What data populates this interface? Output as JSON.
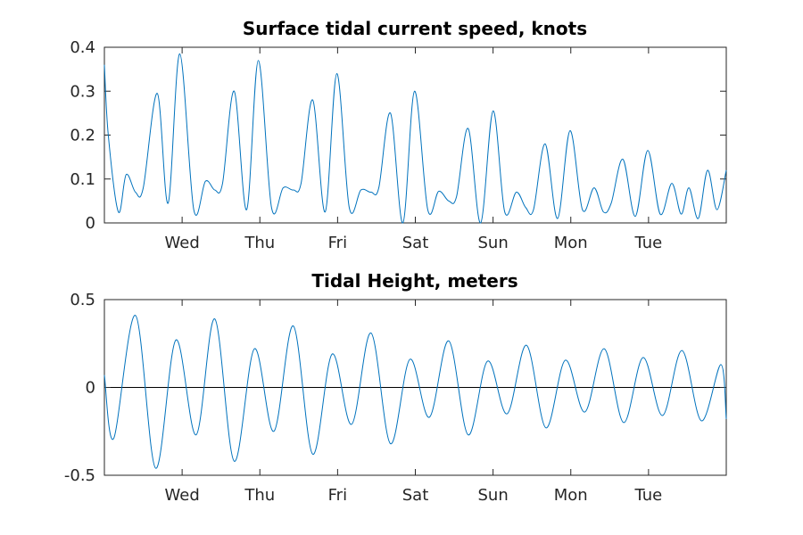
{
  "chart_data": [
    {
      "type": "line",
      "title": "Surface tidal current speed, knots",
      "xlabel": "",
      "ylabel": "",
      "x_ticks": [
        "Wed",
        "Thu",
        "Fri",
        "Sat",
        "Sun",
        "Mon",
        "Tue"
      ],
      "y_ticks": [
        "0",
        "0.1",
        "0.2",
        "0.3",
        "0.4"
      ],
      "xlim": [
        0,
        8
      ],
      "ylim": [
        0,
        0.4
      ],
      "series": [
        {
          "color": "#0072BD",
          "x": [
            0,
            0.05,
            0.18,
            0.28,
            0.4,
            0.5,
            0.68,
            0.82,
            0.97,
            1.15,
            1.3,
            1.42,
            1.52,
            1.67,
            1.83,
            1.98,
            2.15,
            2.3,
            2.43,
            2.53,
            2.68,
            2.84,
            2.99,
            3.15,
            3.3,
            3.43,
            3.53,
            3.68,
            3.84,
            3.99,
            4.16,
            4.3,
            4.43,
            4.53,
            4.68,
            4.84,
            5.0,
            5.15,
            5.3,
            5.42,
            5.52,
            5.67,
            5.83,
            5.99,
            6.15,
            6.3,
            6.42,
            6.52,
            6.67,
            6.83,
            6.99,
            7.15,
            7.3,
            7.42,
            7.52,
            7.64,
            7.76,
            7.88,
            8.0
          ],
          "y": [
            0.36,
            0.2,
            0.025,
            0.11,
            0.07,
            0.08,
            0.295,
            0.045,
            0.385,
            0.03,
            0.095,
            0.075,
            0.09,
            0.3,
            0.03,
            0.37,
            0.035,
            0.08,
            0.075,
            0.09,
            0.28,
            0.025,
            0.34,
            0.035,
            0.075,
            0.07,
            0.08,
            0.25,
            0.0,
            0.3,
            0.03,
            0.072,
            0.05,
            0.06,
            0.215,
            0.0,
            0.255,
            0.025,
            0.07,
            0.035,
            0.03,
            0.18,
            0.01,
            0.21,
            0.03,
            0.08,
            0.025,
            0.045,
            0.145,
            0.015,
            0.165,
            0.02,
            0.09,
            0.02,
            0.08,
            0.01,
            0.12,
            0.03,
            0.12
          ]
        }
      ]
    },
    {
      "type": "line",
      "title": "Tidal Height, meters",
      "xlabel": "",
      "ylabel": "",
      "x_ticks": [
        "Wed",
        "Thu",
        "Fri",
        "Sat",
        "Sun",
        "Mon",
        "Tue"
      ],
      "y_ticks": [
        "-0.5",
        "0",
        "0.5"
      ],
      "xlim": [
        0,
        8
      ],
      "ylim": [
        -0.5,
        0.5
      ],
      "zero_line": true,
      "series": [
        {
          "color": "#0072BD",
          "x": [
            0,
            0.12,
            0.4,
            0.66,
            0.92,
            1.18,
            1.42,
            1.67,
            1.93,
            2.18,
            2.43,
            2.68,
            2.93,
            3.18,
            3.43,
            3.68,
            3.93,
            4.18,
            4.43,
            4.68,
            4.93,
            5.18,
            5.43,
            5.68,
            5.93,
            6.18,
            6.43,
            6.68,
            6.93,
            7.18,
            7.43,
            7.68,
            7.93,
            8.0
          ],
          "y": [
            0.07,
            -0.29,
            0.41,
            -0.46,
            0.27,
            -0.27,
            0.39,
            -0.42,
            0.22,
            -0.25,
            0.35,
            -0.38,
            0.19,
            -0.21,
            0.31,
            -0.32,
            0.16,
            -0.17,
            0.265,
            -0.27,
            0.15,
            -0.15,
            0.24,
            -0.23,
            0.155,
            -0.14,
            0.22,
            -0.2,
            0.17,
            -0.16,
            0.21,
            -0.19,
            0.13,
            -0.18
          ]
        }
      ]
    }
  ]
}
